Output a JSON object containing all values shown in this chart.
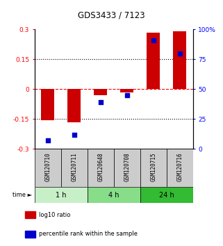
{
  "title": "GDS3433 / 7123",
  "samples": [
    "GSM120710",
    "GSM120711",
    "GSM120648",
    "GSM120708",
    "GSM120715",
    "GSM120716"
  ],
  "time_groups": [
    {
      "label": "1 h",
      "samples": [
        0,
        1
      ],
      "color": "#c8f0c8"
    },
    {
      "label": "4 h",
      "samples": [
        2,
        3
      ],
      "color": "#88dd88"
    },
    {
      "label": "24 h",
      "samples": [
        4,
        5
      ],
      "color": "#33bb33"
    }
  ],
  "log10_ratio": [
    -0.155,
    -0.165,
    -0.03,
    -0.015,
    0.285,
    0.29
  ],
  "percentile_rank": [
    7,
    12,
    39,
    45,
    91,
    80
  ],
  "ylim_left": [
    -0.3,
    0.3
  ],
  "ylim_right": [
    0,
    100
  ],
  "yticks_left": [
    -0.3,
    -0.15,
    0,
    0.15,
    0.3
  ],
  "yticks_right": [
    0,
    25,
    50,
    75,
    100
  ],
  "hlines_dotted": [
    -0.15,
    0.15
  ],
  "hline_dashed_red": 0,
  "bar_color": "#cc0000",
  "dot_color": "#0000cc",
  "bar_width": 0.5,
  "dot_size": 18,
  "sample_box_color": "#cccccc",
  "legend_items": [
    {
      "label": "log10 ratio",
      "color": "#cc0000"
    },
    {
      "label": "percentile rank within the sample",
      "color": "#0000cc"
    }
  ]
}
